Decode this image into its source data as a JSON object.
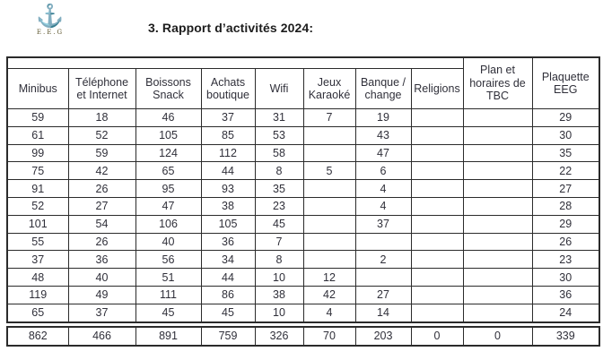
{
  "logo": {
    "anchor_icon": "⚓",
    "caption": "E.E.G"
  },
  "title": "3. Rapport d’activités 2024:",
  "table": {
    "columns": [
      "Minibus",
      "Téléphone et Internet",
      "Boissons Snack",
      "Achats boutique",
      "Wifi",
      "Jeux Karaoké",
      "Banque / change",
      "Religions",
      "Plan et horaires de TBC",
      "Plaquette EEG"
    ],
    "rows": [
      [
        "59",
        "18",
        "46",
        "37",
        "31",
        "7",
        "19",
        "",
        "",
        "29"
      ],
      [
        "61",
        "52",
        "105",
        "85",
        "53",
        "",
        "43",
        "",
        "",
        "30"
      ],
      [
        "99",
        "59",
        "124",
        "112",
        "58",
        "",
        "47",
        "",
        "",
        "35"
      ],
      [
        "75",
        "42",
        "65",
        "44",
        "8",
        "5",
        "6",
        "",
        "",
        "22"
      ],
      [
        "91",
        "26",
        "95",
        "93",
        "35",
        "",
        "4",
        "",
        "",
        "27"
      ],
      [
        "52",
        "27",
        "47",
        "38",
        "23",
        "",
        "4",
        "",
        "",
        "28"
      ],
      [
        "101",
        "54",
        "106",
        "105",
        "45",
        "",
        "37",
        "",
        "",
        "29"
      ],
      [
        "55",
        "26",
        "40",
        "36",
        "7",
        "",
        "",
        "",
        "",
        "26"
      ],
      [
        "37",
        "36",
        "56",
        "34",
        "8",
        "",
        "2",
        "",
        "",
        "23"
      ],
      [
        "48",
        "40",
        "51",
        "44",
        "10",
        "12",
        "",
        "",
        "",
        "30"
      ],
      [
        "119",
        "49",
        "111",
        "86",
        "38",
        "42",
        "27",
        "",
        "",
        "36"
      ],
      [
        "65",
        "37",
        "45",
        "45",
        "10",
        "4",
        "14",
        "",
        "",
        "24"
      ]
    ],
    "totals": [
      "862",
      "466",
      "891",
      "759",
      "326",
      "70",
      "203",
      "0",
      "0",
      "339"
    ]
  },
  "colors": {
    "border": "#2b2b2b",
    "text": "#30303a",
    "logo_gold": "#8d7f3e",
    "background": "#ffffff"
  }
}
